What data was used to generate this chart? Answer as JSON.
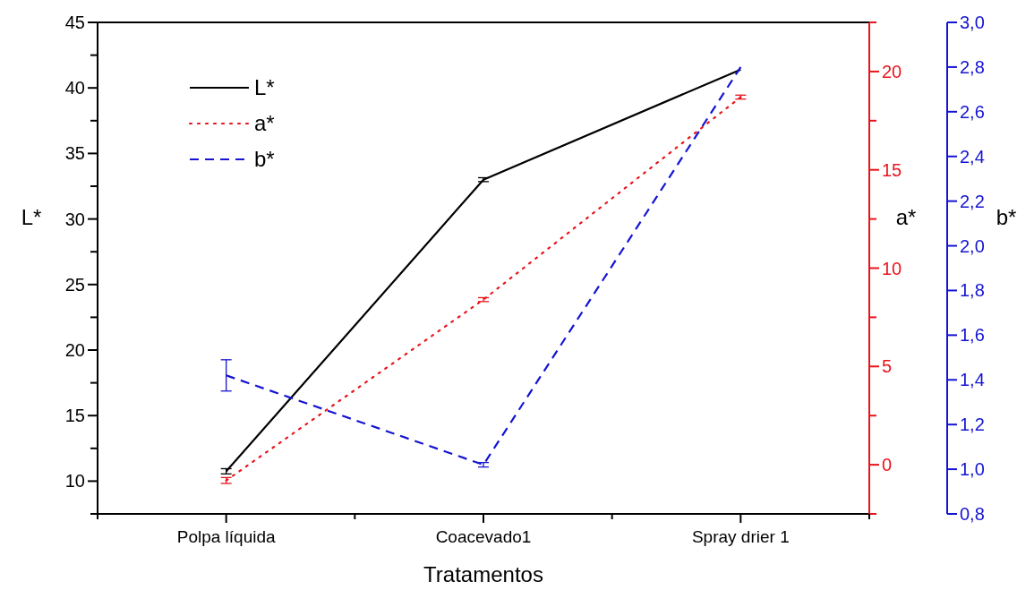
{
  "chart_data": {
    "type": "line",
    "xlabel": "Tratamentos",
    "ylabel": "L*",
    "y2label": "a*",
    "y3label": "b*",
    "categories": [
      "Polpa líquida",
      "Coacevado1",
      "Spray drier  1"
    ],
    "ylim": [
      7.5,
      45
    ],
    "yticks": [
      {
        "value": 7.5,
        "label": null
      },
      10,
      {
        "value": 12.5,
        "label": null
      },
      15,
      {
        "value": 17.5,
        "label": null
      },
      20,
      {
        "value": 22.5,
        "label": null
      },
      25,
      {
        "value": 27.5,
        "label": null
      },
      30,
      {
        "value": 32.5,
        "label": null
      },
      35,
      {
        "value": 37.5,
        "label": null
      },
      40,
      {
        "value": 42.5,
        "label": null
      },
      45
    ],
    "y2lim": [
      -2.5,
      22.5
    ],
    "y2ticks": [
      {
        "value": -2.5,
        "label": null
      },
      0,
      {
        "value": 2.5,
        "label": null
      },
      5,
      {
        "value": 7.5,
        "label": null
      },
      10,
      {
        "value": 12.5,
        "label": null
      },
      15,
      {
        "value": 17.5,
        "label": null
      },
      20,
      {
        "value": 22.5,
        "label": null
      }
    ],
    "y3lim": [
      0.8,
      3.0
    ],
    "y3ticks": [
      {
        "value": 0.8,
        "label": "0,8"
      },
      {
        "value": 1.0,
        "label": "1,0"
      },
      {
        "value": 1.2,
        "label": "1,2"
      },
      {
        "value": 1.4,
        "label": "1,4"
      },
      {
        "value": 1.6,
        "label": "1,6"
      },
      {
        "value": 1.8,
        "label": "1,8"
      },
      {
        "value": 2.0,
        "label": "2,0"
      },
      {
        "value": 2.2,
        "label": "2,2"
      },
      {
        "value": 2.4,
        "label": "2,4"
      },
      {
        "value": 2.6,
        "label": "2,6"
      },
      {
        "value": 2.8,
        "label": "2,8"
      },
      {
        "value": 3.0,
        "label": "3,0"
      }
    ],
    "legend": "top left",
    "marker": "none",
    "grid": false,
    "series": [
      {
        "name": "L*",
        "color": "#000000",
        "line_style": "solid",
        "values": [
          10.75,
          33.0,
          41.4
        ],
        "errors": [
          0.2,
          0.15,
          null
        ]
      },
      {
        "name": "a*",
        "color": "#e8141c",
        "line_style": "dotted",
        "axis": "y2",
        "values": [
          -0.8,
          8.4,
          18.7
        ],
        "errors": [
          0.15,
          0.1,
          0.1
        ]
      },
      {
        "name": "b*",
        "color": "#1414d2",
        "line_style": "dashed",
        "axis": "y3",
        "values": [
          1.42,
          1.02,
          2.8
        ],
        "errors": [
          0.07,
          0.01,
          null
        ]
      }
    ]
  }
}
